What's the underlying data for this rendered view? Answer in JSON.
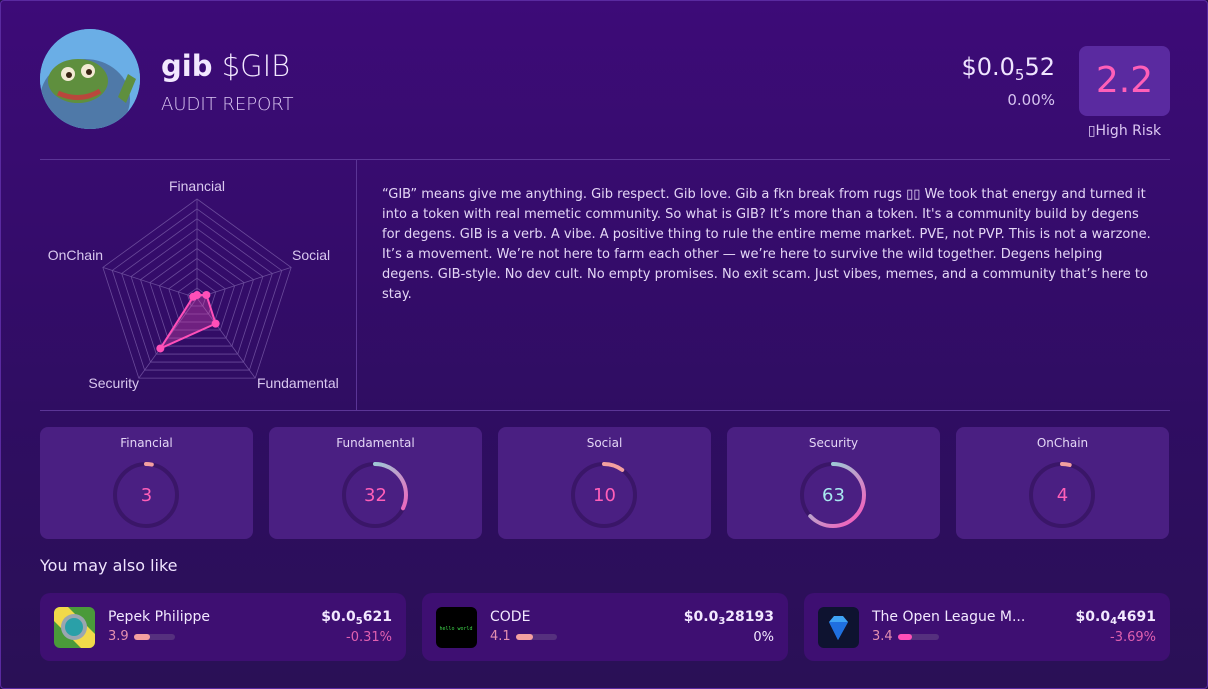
{
  "header": {
    "name": "gib",
    "ticker": "$GIB",
    "subtitle": "AUDIT REPORT",
    "price_prefix": "$0.0",
    "price_zeros": "5",
    "price_digits": "52",
    "change": "0.00%",
    "score": "2.2",
    "risk_label": "▯High Risk"
  },
  "description": "“GIB” means give me anything. Gib respect. Gib love. Gib a fkn break from rugs ▯▯ We took that energy and turned it into a token with real memetic community. So what is GIB? It’s more than a token. It's a community build by degens for degens. GIB is a verb. A vibe. A positive thing to rule the entire meme market. PVE, not PVP. This is not a warzone. It’s a movement. We’re not here to farm each other — we’re here to survive the wild together. Degens helping degens. GIB-style. No dev cult. No empty promises. No exit scam. Just vibes, memes, and a community that’s here to stay.",
  "chart_data": {
    "type": "radar",
    "categories": [
      "Financial",
      "Social",
      "Fundamental",
      "Security",
      "OnChain"
    ],
    "values": [
      3,
      10,
      32,
      63,
      4
    ],
    "range": [
      0,
      100
    ],
    "rings": 10,
    "color": "#ff4fb8"
  },
  "gauges": [
    {
      "label": "Financial",
      "value": 3
    },
    {
      "label": "Fundamental",
      "value": 32
    },
    {
      "label": "Social",
      "value": 10
    },
    {
      "label": "Security",
      "value": 63
    },
    {
      "label": "OnChain",
      "value": 4
    }
  ],
  "colors": {
    "low": "#ff4fb8",
    "high": "#7ff0e0",
    "track": "#3a1668"
  },
  "related": {
    "title": "You may also like",
    "items": [
      {
        "name": "Pepek Philippe",
        "score": "3.9",
        "score_fraction": 0.39,
        "price_prefix": "$0.0",
        "price_zeros": "5",
        "price_digits": "621",
        "change": "-0.31%",
        "change_color": "#e060b0",
        "bar_color": "#f4a0a0",
        "icon": "watch-icon"
      },
      {
        "name": "CODE",
        "score": "4.1",
        "score_fraction": 0.41,
        "price_prefix": "$0.0",
        "price_zeros": "3",
        "price_digits": "28193",
        "change": "0%",
        "change_color": "#f2e8ff",
        "bar_color": "#f4a0a0",
        "icon": "hello-world-terminal-icon"
      },
      {
        "name": "The Open League M...",
        "score": "3.4",
        "score_fraction": 0.34,
        "price_prefix": "$0.0",
        "price_zeros": "4",
        "price_digits": "4691",
        "change": "-3.69%",
        "change_color": "#e060b0",
        "bar_color": "#ff4fb8",
        "icon": "diamond-icon"
      }
    ]
  }
}
